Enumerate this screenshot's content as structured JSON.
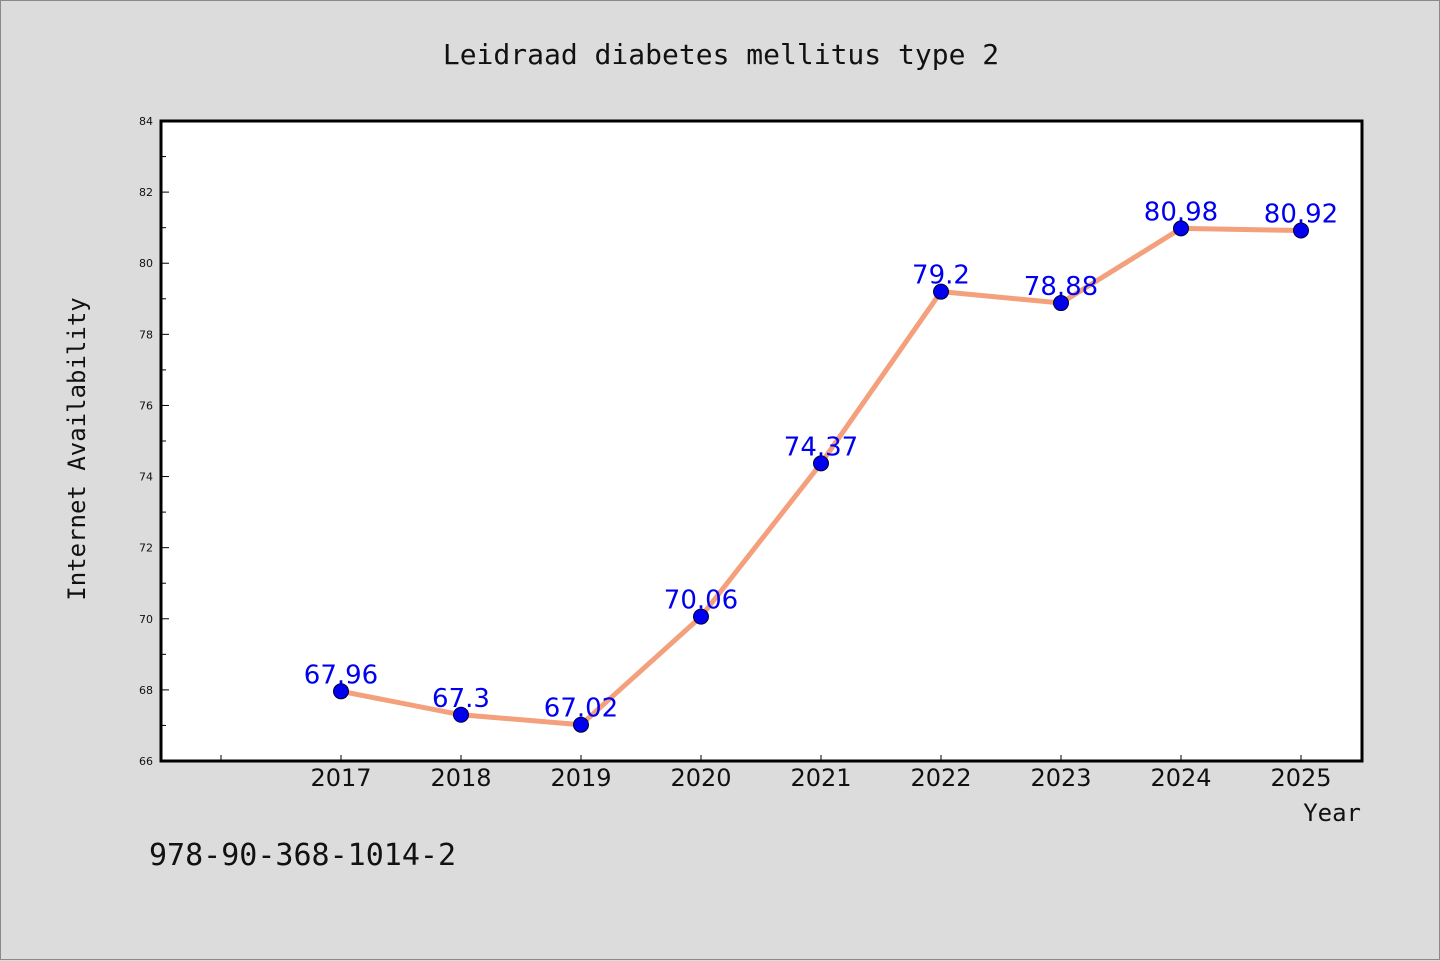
{
  "chart_data": {
    "type": "line",
    "title": "Leidraad diabetes mellitus type 2",
    "xlabel": "Year",
    "ylabel": "Internet Availability",
    "categories": [
      "2017",
      "2018",
      "2019",
      "2020",
      "2021",
      "2022",
      "2023",
      "2024",
      "2025"
    ],
    "series": [
      {
        "values": [
          67.96,
          67.3,
          67.02,
          70.06,
          74.37,
          79.2,
          78.88,
          80.98,
          80.92
        ],
        "labels": [
          "67.96",
          "67.3",
          "67.02",
          "70.06",
          "74.37",
          "79.2",
          "78.88",
          "80.98",
          "80.92"
        ]
      }
    ],
    "ylim": [
      66,
      84
    ],
    "yticks": [
      "66",
      "68",
      "70",
      "72",
      "74",
      "76",
      "78",
      "80",
      "82",
      "84"
    ],
    "grid": false,
    "legend": "none",
    "colors": {
      "line": "#f4a07c",
      "marker": "#0000ee",
      "label": "#0000ee",
      "background": "#dcdcdc",
      "plot_background": "#ffffff"
    }
  },
  "footer_text": "978-90-368-1014-2"
}
